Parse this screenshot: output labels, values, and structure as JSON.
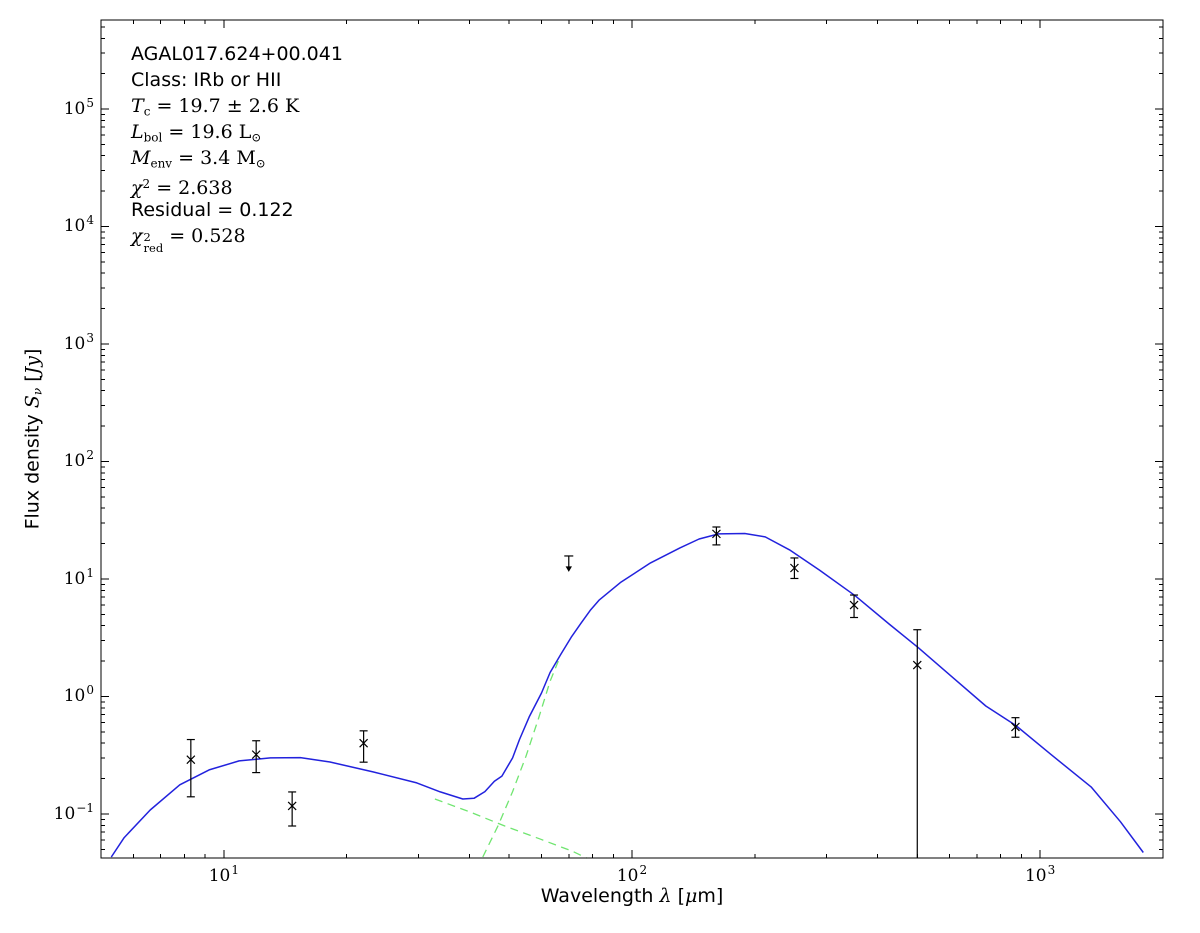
{
  "figure": {
    "annotation_lines": [
      {
        "font": "sans",
        "text": "AGAL017.624+00.041",
        "segments": [
          {
            "t": "AGAL017.624+00.041"
          }
        ]
      },
      {
        "font": "sans",
        "text": "Class: IRb or HII",
        "segments": [
          {
            "t": "Class: IRb or HII"
          }
        ]
      },
      {
        "font": "serif",
        "text": "Tc = 19.7 ± 2.6 K",
        "segments": [
          {
            "t": "T",
            "s": "i"
          },
          {
            "t": "c",
            "s": "sub"
          },
          {
            "t": " = 19.7 ± 2.6 K"
          }
        ]
      },
      {
        "font": "serif",
        "text": "Lbol = 19.6 L⊙",
        "segments": [
          {
            "t": "L",
            "s": "i"
          },
          {
            "t": "bol",
            "s": "sub"
          },
          {
            "t": " = 19.6 L"
          },
          {
            "t": "⊙",
            "s": "sub"
          }
        ]
      },
      {
        "font": "serif",
        "text": "Menv = 3.4 M⊙",
        "segments": [
          {
            "t": "M",
            "s": "i"
          },
          {
            "t": "env",
            "s": "sub"
          },
          {
            "t": " = 3.4 M"
          },
          {
            "t": "⊙",
            "s": "sub"
          }
        ]
      },
      {
        "font": "serif",
        "text": "χ² = 2.638",
        "segments": [
          {
            "t": "χ",
            "s": "i"
          },
          {
            "t": "2",
            "s": "sup"
          },
          {
            "t": " = 2.638"
          }
        ]
      },
      {
        "font": "sans",
        "text": "Residual = 0.122",
        "segments": [
          {
            "t": "Residual = 0.122"
          }
        ]
      },
      {
        "font": "serif",
        "text": "χ²red = 0.528",
        "segments": [
          {
            "t": "χ",
            "s": "i"
          },
          {
            "s": "stack",
            "sup": "2",
            "sub": "red"
          },
          {
            "t": " = 0.528"
          }
        ]
      }
    ]
  },
  "chart_data": {
    "type": "line",
    "title": "AGAL017.624+00.041",
    "xlabel": "Wavelength λ [μm]",
    "ylabel": "Flux density Sν [Jy]",
    "legend": "none",
    "grid": false,
    "x_axis": {
      "scale": "log",
      "min": 5,
      "max": 2000,
      "major_tick_exponents": [
        1,
        2,
        3
      ]
    },
    "y_axis": {
      "scale": "log",
      "min": 0.0422,
      "max": 572000,
      "major_tick_exponents": [
        -1,
        0,
        1,
        2,
        3,
        4,
        5
      ]
    },
    "xlabel_segments": [
      {
        "t": "Wavelength "
      },
      {
        "t": "λ",
        "s": "mi"
      },
      {
        "t": " ["
      },
      {
        "t": "μ",
        "s": "mi"
      },
      {
        "t": "m]"
      }
    ],
    "ylabel_segments": [
      {
        "t": "Flux density "
      },
      {
        "t": "S",
        "s": "mi"
      },
      {
        "t": "ν",
        "s": "misub"
      },
      {
        "t": " ["
      },
      {
        "t": "Jy",
        "s": "mi"
      },
      {
        "t": "]"
      }
    ],
    "colors": {
      "model_total": "#2222dd",
      "components": "#70e570",
      "data": "#000000",
      "axes": "#000000",
      "background": "#ffffff"
    },
    "series": [
      {
        "name": "model-total",
        "style": "solid",
        "color": "#2222dd",
        "points": [
          [
            5.3,
            0.043
          ],
          [
            5.7,
            0.063
          ],
          [
            6.6,
            0.108
          ],
          [
            7.8,
            0.177
          ],
          [
            9.2,
            0.237
          ],
          [
            10.9,
            0.283
          ],
          [
            13,
            0.3
          ],
          [
            15.4,
            0.302
          ],
          [
            18.2,
            0.277
          ],
          [
            23.2,
            0.228
          ],
          [
            29.7,
            0.184
          ],
          [
            33.9,
            0.154
          ],
          [
            38.5,
            0.134
          ],
          [
            41,
            0.136
          ],
          [
            43.6,
            0.155
          ],
          [
            46,
            0.19
          ],
          [
            48,
            0.21
          ],
          [
            51,
            0.3
          ],
          [
            53,
            0.43
          ],
          [
            56,
            0.67
          ],
          [
            60,
            1.07
          ],
          [
            63,
            1.6
          ],
          [
            67,
            2.3
          ],
          [
            71,
            3.2
          ],
          [
            75,
            4.2
          ],
          [
            79,
            5.4
          ],
          [
            83,
            6.6
          ],
          [
            94,
            9.4
          ],
          [
            111,
            13.7
          ],
          [
            131,
            18.4
          ],
          [
            146,
            21.9
          ],
          [
            163,
            24.2
          ],
          [
            189,
            24.4
          ],
          [
            212,
            22.8
          ],
          [
            243,
            17.7
          ],
          [
            288,
            11.9
          ],
          [
            352,
            7.2
          ],
          [
            428,
            4.1
          ],
          [
            503,
            2.6
          ],
          [
            604,
            1.5
          ],
          [
            736,
            0.83
          ],
          [
            870,
            0.57
          ],
          [
            1064,
            0.32
          ],
          [
            1333,
            0.17
          ],
          [
            1573,
            0.086
          ],
          [
            1790,
            0.047
          ]
        ]
      },
      {
        "name": "component-cold",
        "style": "dashed",
        "color": "#70e570",
        "points": [
          [
            43.1,
            0.043
          ],
          [
            47,
            0.08
          ],
          [
            51,
            0.155
          ],
          [
            55,
            0.31
          ],
          [
            59,
            0.65
          ],
          [
            63,
            1.35
          ],
          [
            66,
            2.0
          ]
        ]
      },
      {
        "name": "component-warm",
        "style": "dashed",
        "color": "#70e570",
        "points": [
          [
            32.9,
            0.134
          ],
          [
            40.1,
            0.104
          ],
          [
            48.8,
            0.079
          ],
          [
            59.7,
            0.061
          ],
          [
            71.6,
            0.048
          ],
          [
            77.5,
            0.042
          ]
        ]
      }
    ],
    "data_points": [
      {
        "x": 8.3,
        "y": 0.29,
        "ylo": 0.14,
        "yhi": 0.43
      },
      {
        "x": 12,
        "y": 0.32,
        "ylo": 0.225,
        "yhi": 0.42
      },
      {
        "x": 14.7,
        "y": 0.117,
        "ylo": 0.079,
        "yhi": 0.154
      },
      {
        "x": 22,
        "y": 0.4,
        "ylo": 0.276,
        "yhi": 0.51
      },
      {
        "x": 161,
        "y": 24.2,
        "ylo": 19.5,
        "yhi": 27.7
      },
      {
        "x": 250,
        "y": 12.4,
        "ylo": 10.1,
        "yhi": 15.1
      },
      {
        "x": 350,
        "y": 6.0,
        "ylo": 4.7,
        "yhi": 7.3
      },
      {
        "x": 500,
        "y": 1.85,
        "ylo": 0.043,
        "yhi": 3.7,
        "lo_uncapped": true
      },
      {
        "x": 870,
        "y": 0.55,
        "ylo": 0.45,
        "yhi": 0.66
      }
    ],
    "upper_limits": [
      {
        "x": 70,
        "y": 14,
        "cap": 15.7,
        "tip": 11.5
      }
    ],
    "marker": "x"
  }
}
